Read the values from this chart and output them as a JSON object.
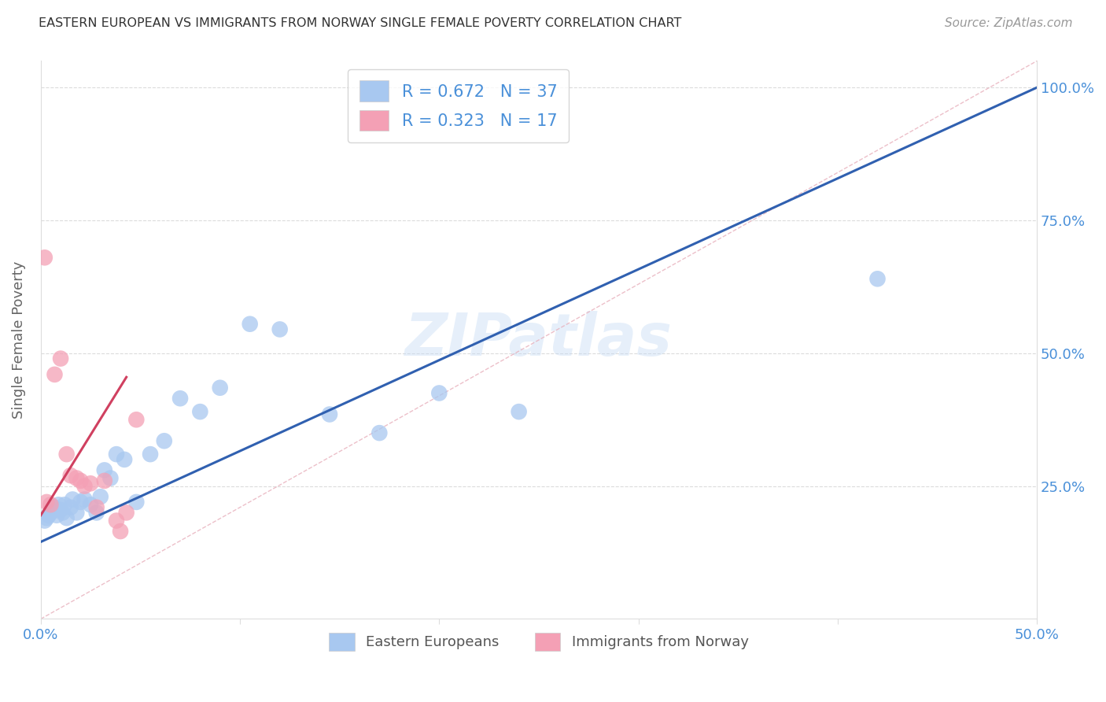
{
  "title": "EASTERN EUROPEAN VS IMMIGRANTS FROM NORWAY SINGLE FEMALE POVERTY CORRELATION CHART",
  "source": "Source: ZipAtlas.com",
  "ylabel": "Single Female Poverty",
  "xlim": [
    0.0,
    0.5
  ],
  "ylim": [
    0.0,
    1.05
  ],
  "ytick_labels": [
    "25.0%",
    "50.0%",
    "75.0%",
    "100.0%"
  ],
  "ytick_vals": [
    0.25,
    0.5,
    0.75,
    1.0
  ],
  "blue_color": "#a8c8f0",
  "pink_color": "#f4a0b5",
  "blue_line_color": "#3060b0",
  "pink_line_color": "#d04060",
  "dash_line_color": "#e8b0bc",
  "legend_text_color": "#4a90d9",
  "R_blue": 0.672,
  "N_blue": 37,
  "R_pink": 0.323,
  "N_pink": 17,
  "blue_scatter_x": [
    0.002,
    0.003,
    0.004,
    0.005,
    0.006,
    0.007,
    0.008,
    0.009,
    0.01,
    0.011,
    0.012,
    0.013,
    0.015,
    0.016,
    0.018,
    0.02,
    0.022,
    0.025,
    0.028,
    0.03,
    0.032,
    0.035,
    0.038,
    0.042,
    0.048,
    0.055,
    0.062,
    0.07,
    0.08,
    0.09,
    0.105,
    0.12,
    0.145,
    0.17,
    0.2,
    0.24,
    0.42
  ],
  "blue_scatter_y": [
    0.185,
    0.19,
    0.195,
    0.2,
    0.205,
    0.21,
    0.195,
    0.215,
    0.205,
    0.2,
    0.215,
    0.19,
    0.21,
    0.225,
    0.2,
    0.22,
    0.225,
    0.215,
    0.2,
    0.23,
    0.28,
    0.265,
    0.31,
    0.3,
    0.22,
    0.31,
    0.335,
    0.415,
    0.39,
    0.435,
    0.555,
    0.545,
    0.385,
    0.35,
    0.425,
    0.39,
    0.64
  ],
  "pink_scatter_x": [
    0.002,
    0.003,
    0.005,
    0.007,
    0.01,
    0.013,
    0.015,
    0.018,
    0.02,
    0.022,
    0.025,
    0.028,
    0.032,
    0.038,
    0.04,
    0.043,
    0.048
  ],
  "pink_scatter_y": [
    0.68,
    0.22,
    0.215,
    0.46,
    0.49,
    0.31,
    0.27,
    0.265,
    0.26,
    0.25,
    0.255,
    0.21,
    0.26,
    0.185,
    0.165,
    0.2,
    0.375
  ],
  "blue_line_x0": 0.0,
  "blue_line_y0": 0.145,
  "blue_line_x1": 0.5,
  "blue_line_y1": 1.0,
  "pink_line_x0": 0.0,
  "pink_line_y0": 0.195,
  "pink_line_x1": 0.043,
  "pink_line_y1": 0.455,
  "dash_line_x0": 0.0,
  "dash_line_y0": 0.0,
  "dash_line_x1": 0.5,
  "dash_line_y1": 1.05,
  "watermark": "ZIPatlas",
  "background_color": "#ffffff",
  "grid_color": "#cccccc"
}
